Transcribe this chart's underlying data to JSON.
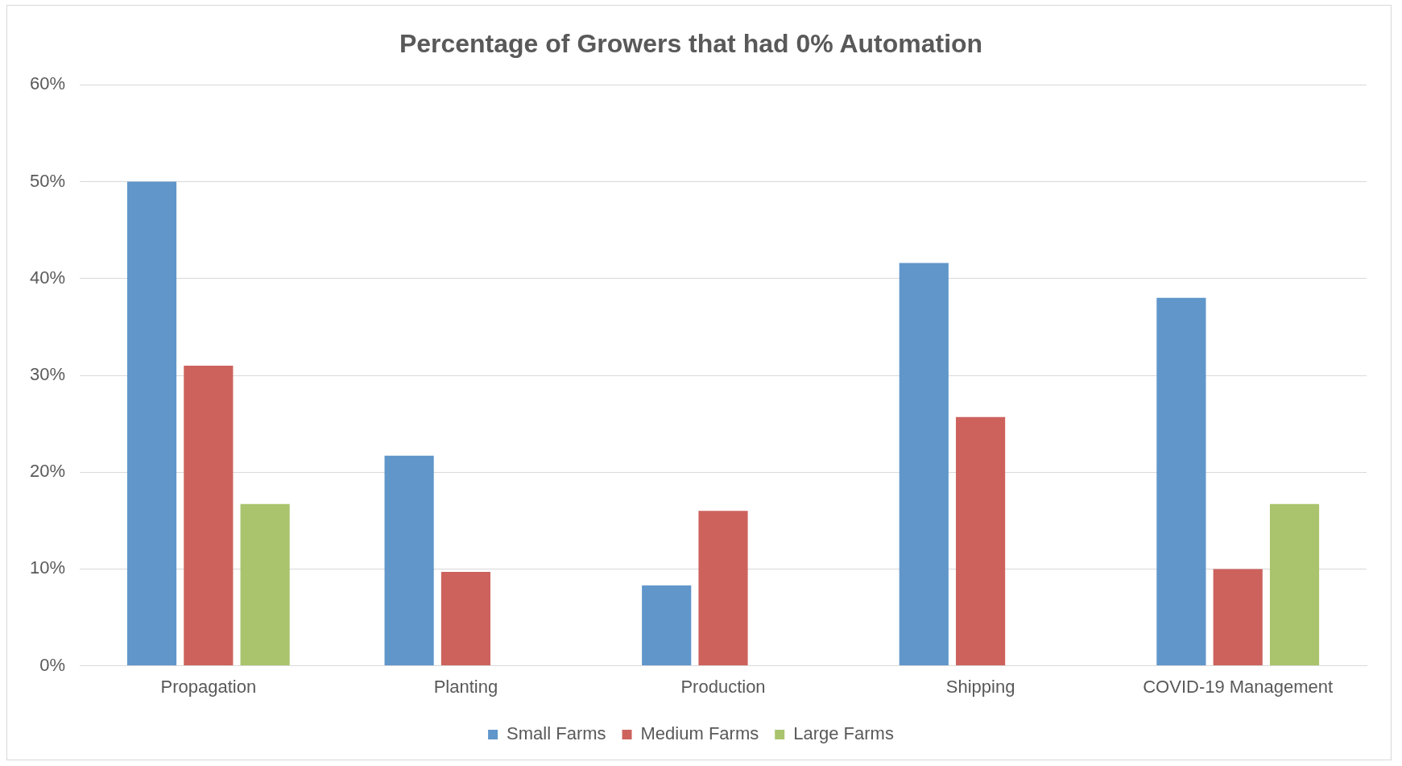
{
  "chart_data": {
    "type": "bar",
    "title": "Percentage of Growers that had 0% Automation",
    "categories": [
      "Propagation",
      "Planting",
      "Production",
      "Shipping",
      "COVID-19 Management"
    ],
    "series": [
      {
        "name": "Small Farms",
        "color": "#6096ca",
        "values": [
          50,
          21.7,
          8.3,
          41.6,
          38
        ]
      },
      {
        "name": "Medium Farms",
        "color": "#cd625d",
        "values": [
          31,
          9.7,
          16,
          25.7,
          10
        ]
      },
      {
        "name": "Large Farms",
        "color": "#a9c46c",
        "values": [
          16.7,
          0,
          0,
          0,
          16.7
        ]
      }
    ],
    "ylim": [
      0,
      60
    ],
    "yticks": [
      {
        "value": 0,
        "label": "0%"
      },
      {
        "value": 10,
        "label": "10%"
      },
      {
        "value": 20,
        "label": "20%"
      },
      {
        "value": 30,
        "label": "30%"
      },
      {
        "value": 40,
        "label": "40%"
      },
      {
        "value": 50,
        "label": "50%"
      },
      {
        "value": 60,
        "label": "60%"
      }
    ],
    "grid": "y",
    "legend": "bottom"
  }
}
